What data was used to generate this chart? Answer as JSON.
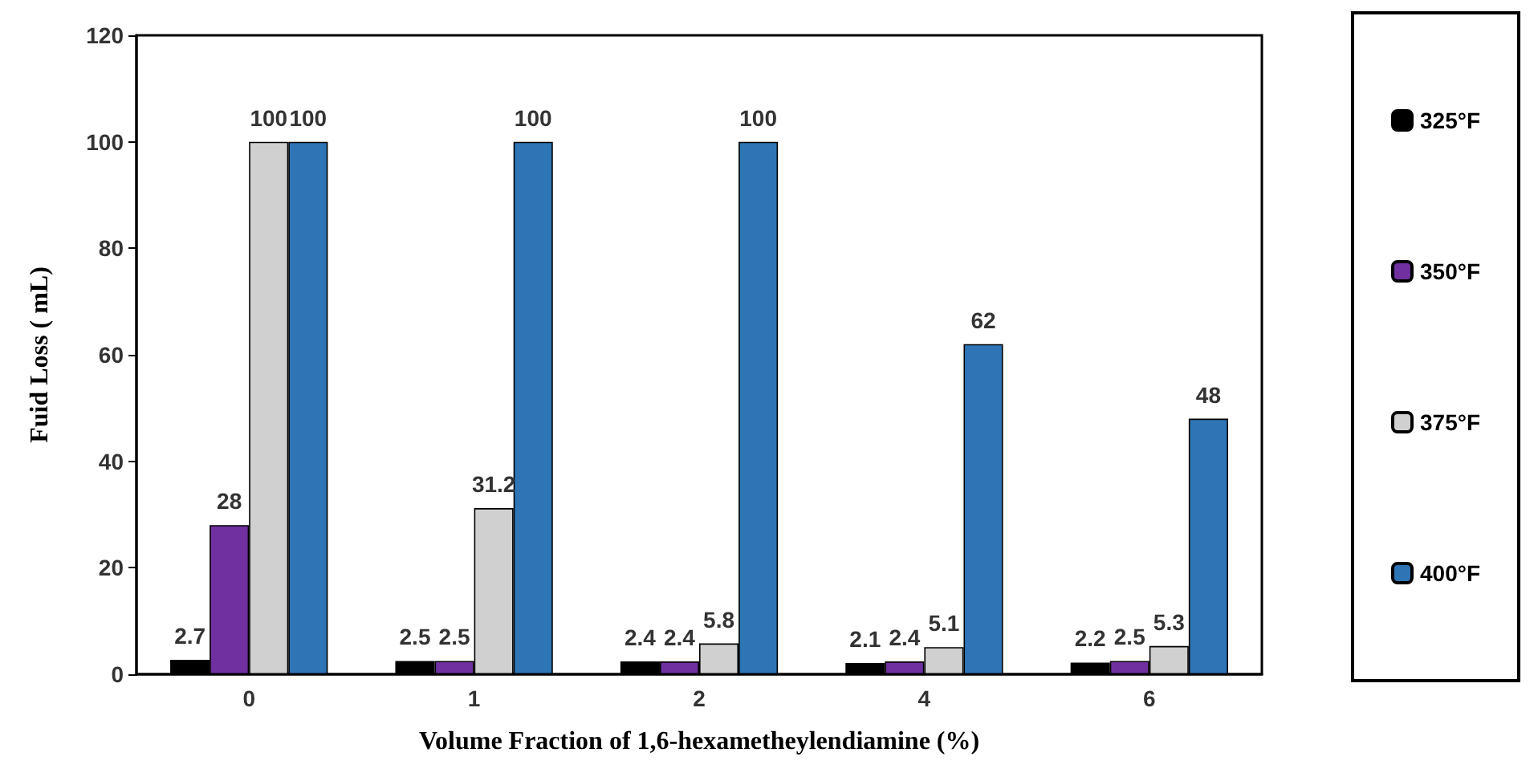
{
  "chart_data": {
    "type": "bar",
    "xlabel": "Volume Fraction of 1,6-hexametheylendiamine (%)",
    "ylabel": "Fuid Loss ( mL)",
    "categories": [
      "0",
      "1",
      "2",
      "4",
      "6"
    ],
    "series": [
      {
        "name": "325°F",
        "color": "#000000",
        "values": [
          2.7,
          2.5,
          2.4,
          2.1,
          2.2
        ]
      },
      {
        "name": "350°F",
        "color": "#7030a0",
        "values": [
          28,
          2.5,
          2.4,
          2.4,
          2.5
        ]
      },
      {
        "name": "375°F",
        "color": "#d0d0d0",
        "values": [
          100,
          31.2,
          5.8,
          5.1,
          5.3
        ]
      },
      {
        "name": "400°F",
        "color": "#2e75b6",
        "values": [
          100,
          100,
          100,
          62,
          48
        ]
      }
    ],
    "ylim": [
      0,
      120
    ],
    "yticks": [
      0,
      20,
      40,
      60,
      80,
      100,
      120
    ],
    "grid": false,
    "legend": "right",
    "data_labels": true
  }
}
